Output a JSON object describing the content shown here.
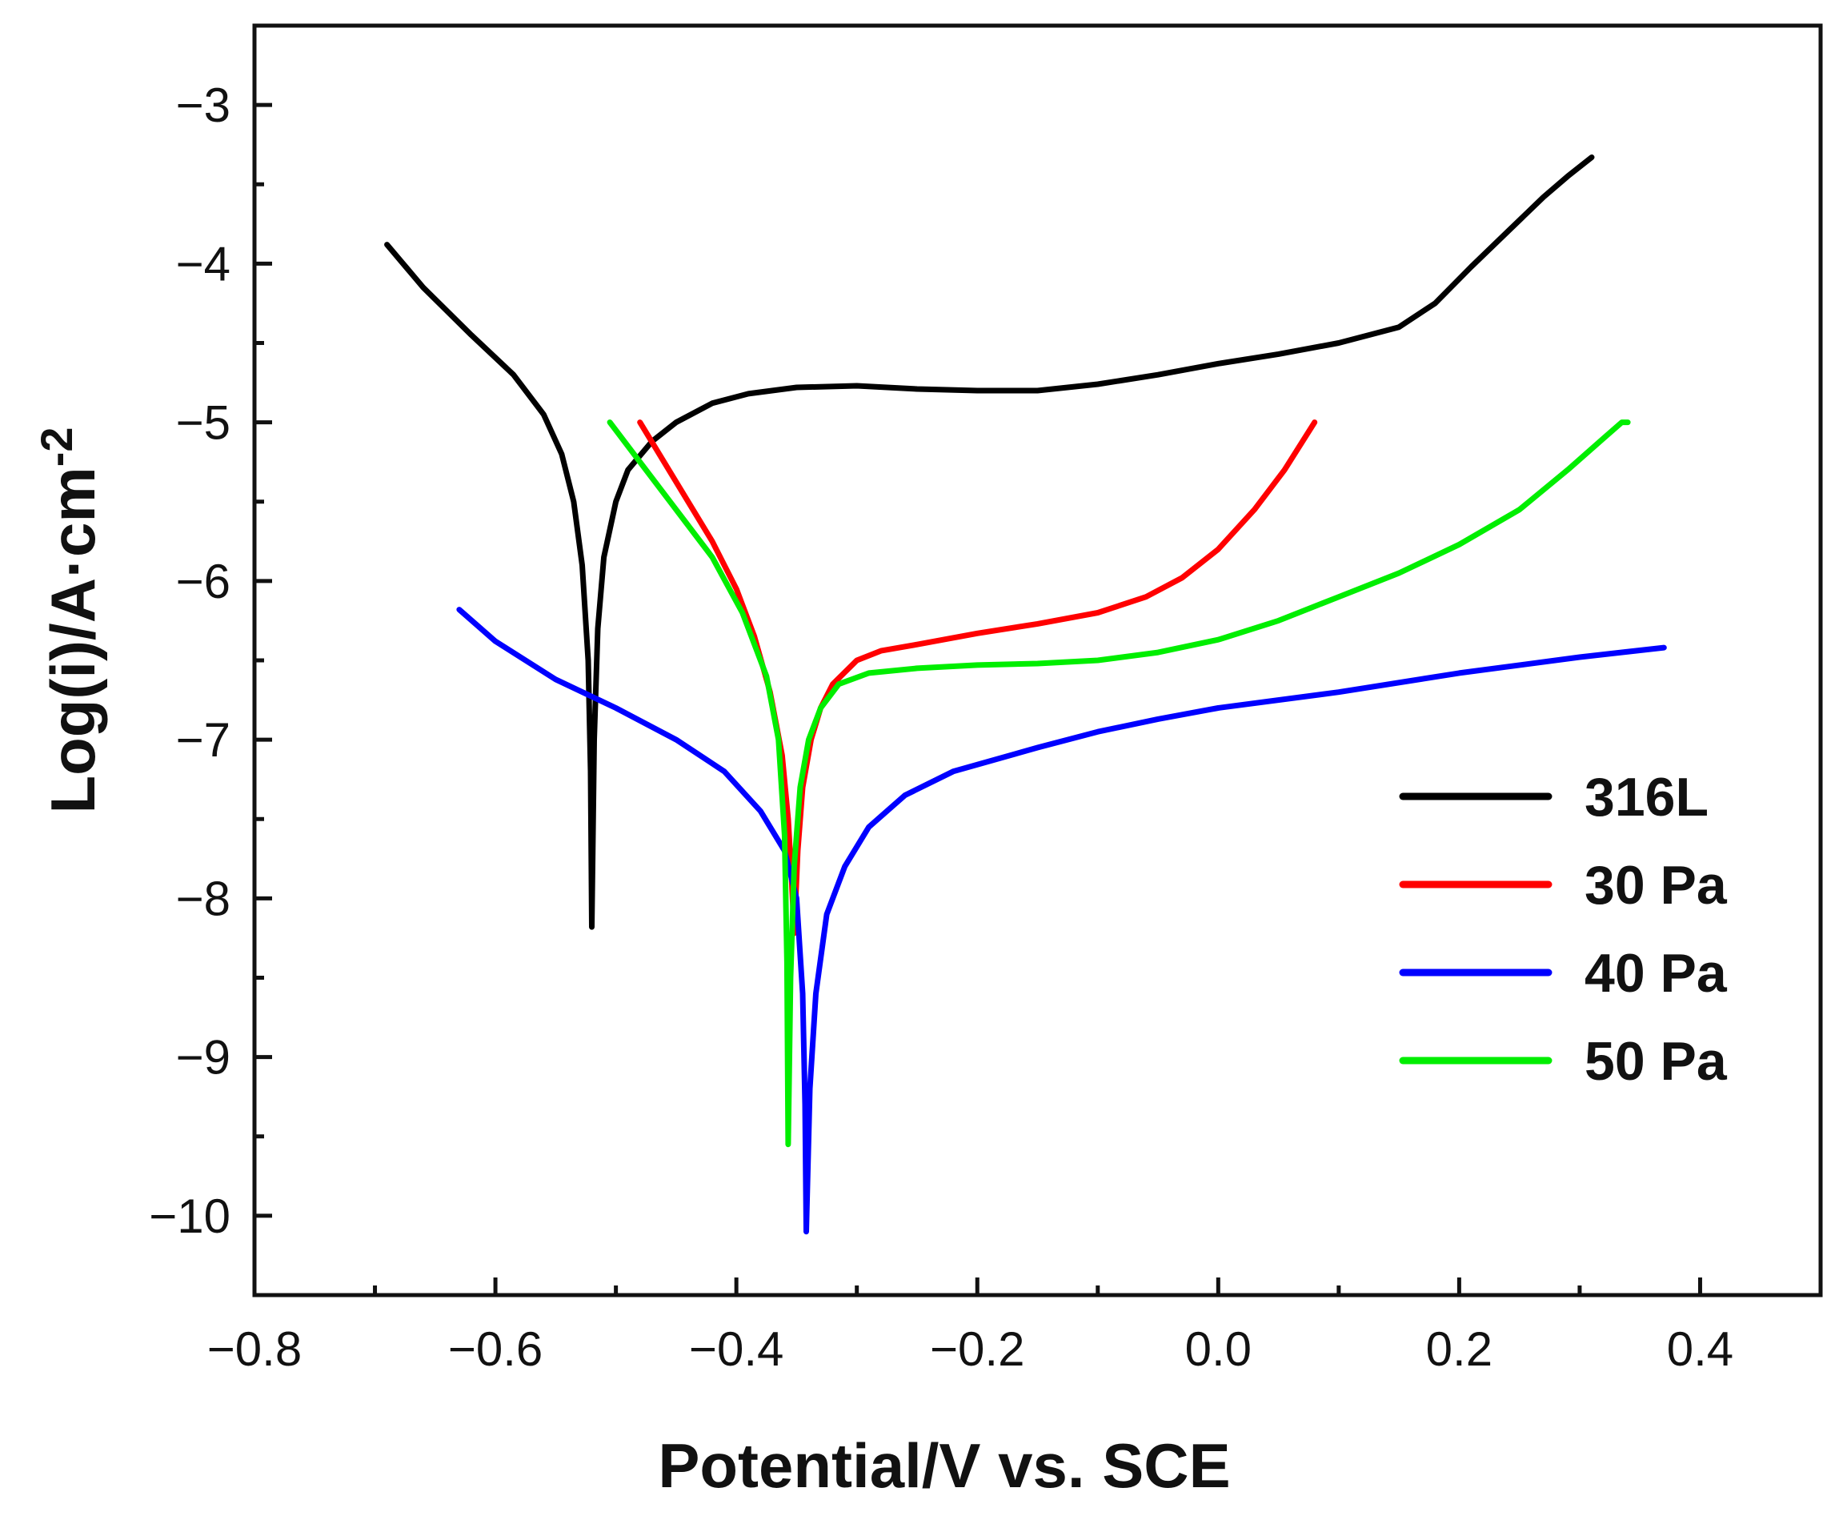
{
  "chart_data": {
    "type": "line",
    "title": "",
    "xlabel": "Potential/V vs. SCE",
    "ylabel_main": "Log(i)/A·cm",
    "ylabel_sup": "-2",
    "xlim": [
      -0.8,
      0.5
    ],
    "ylim": [
      -10.5,
      -2.5
    ],
    "x_ticks": [
      -0.8,
      -0.6,
      -0.4,
      -0.2,
      0.0,
      0.2,
      0.4
    ],
    "x_tick_labels": [
      "−0.8",
      "−0.6",
      "−0.4",
      "−0.2",
      "0.0",
      "0.2",
      "0.4"
    ],
    "y_ticks": [
      -3,
      -4,
      -5,
      -6,
      -7,
      -8,
      -9,
      -10
    ],
    "y_tick_labels": [
      "−3",
      "−4",
      "−5",
      "−6",
      "−7",
      "−8",
      "−9",
      "−10"
    ],
    "legend_position": "right",
    "series": [
      {
        "name": "316L",
        "color": "#000000",
        "points": [
          [
            -0.69,
            -3.88
          ],
          [
            -0.66,
            -4.15
          ],
          [
            -0.62,
            -4.45
          ],
          [
            -0.585,
            -4.7
          ],
          [
            -0.56,
            -4.95
          ],
          [
            -0.545,
            -5.2
          ],
          [
            -0.535,
            -5.5
          ],
          [
            -0.528,
            -5.9
          ],
          [
            -0.523,
            -6.5
          ],
          [
            -0.521,
            -7.2
          ],
          [
            -0.52,
            -8.18
          ],
          [
            -0.518,
            -7.0
          ],
          [
            -0.515,
            -6.3
          ],
          [
            -0.51,
            -5.85
          ],
          [
            -0.5,
            -5.5
          ],
          [
            -0.49,
            -5.3
          ],
          [
            -0.47,
            -5.12
          ],
          [
            -0.45,
            -5.0
          ],
          [
            -0.42,
            -4.88
          ],
          [
            -0.39,
            -4.82
          ],
          [
            -0.35,
            -4.78
          ],
          [
            -0.3,
            -4.77
          ],
          [
            -0.25,
            -4.79
          ],
          [
            -0.2,
            -4.8
          ],
          [
            -0.15,
            -4.8
          ],
          [
            -0.1,
            -4.76
          ],
          [
            -0.05,
            -4.7
          ],
          [
            0.0,
            -4.63
          ],
          [
            0.05,
            -4.57
          ],
          [
            0.1,
            -4.5
          ],
          [
            0.15,
            -4.4
          ],
          [
            0.18,
            -4.25
          ],
          [
            0.21,
            -4.02
          ],
          [
            0.24,
            -3.8
          ],
          [
            0.27,
            -3.58
          ],
          [
            0.29,
            -3.45
          ],
          [
            0.31,
            -3.33
          ]
        ]
      },
      {
        "name": "30 Pa",
        "color": "#ff0000",
        "points": [
          [
            -0.48,
            -5.0
          ],
          [
            -0.46,
            -5.25
          ],
          [
            -0.44,
            -5.5
          ],
          [
            -0.42,
            -5.75
          ],
          [
            -0.4,
            -6.05
          ],
          [
            -0.385,
            -6.35
          ],
          [
            -0.372,
            -6.7
          ],
          [
            -0.362,
            -7.1
          ],
          [
            -0.357,
            -7.5
          ],
          [
            -0.354,
            -7.9
          ],
          [
            -0.352,
            -8.22
          ],
          [
            -0.349,
            -7.7
          ],
          [
            -0.345,
            -7.3
          ],
          [
            -0.338,
            -7.0
          ],
          [
            -0.33,
            -6.8
          ],
          [
            -0.32,
            -6.65
          ],
          [
            -0.3,
            -6.5
          ],
          [
            -0.28,
            -6.44
          ],
          [
            -0.25,
            -6.4
          ],
          [
            -0.2,
            -6.33
          ],
          [
            -0.15,
            -6.27
          ],
          [
            -0.1,
            -6.2
          ],
          [
            -0.06,
            -6.1
          ],
          [
            -0.03,
            -5.98
          ],
          [
            0.0,
            -5.8
          ],
          [
            0.03,
            -5.55
          ],
          [
            0.055,
            -5.3
          ],
          [
            0.08,
            -5.0
          ]
        ]
      },
      {
        "name": "40 Pa",
        "color": "#0000ff",
        "points": [
          [
            -0.63,
            -6.18
          ],
          [
            -0.6,
            -6.38
          ],
          [
            -0.55,
            -6.62
          ],
          [
            -0.5,
            -6.8
          ],
          [
            -0.45,
            -7.0
          ],
          [
            -0.41,
            -7.2
          ],
          [
            -0.38,
            -7.45
          ],
          [
            -0.36,
            -7.7
          ],
          [
            -0.35,
            -8.0
          ],
          [
            -0.345,
            -8.6
          ],
          [
            -0.343,
            -9.3
          ],
          [
            -0.342,
            -10.1
          ],
          [
            -0.339,
            -9.2
          ],
          [
            -0.334,
            -8.6
          ],
          [
            -0.325,
            -8.1
          ],
          [
            -0.31,
            -7.8
          ],
          [
            -0.29,
            -7.55
          ],
          [
            -0.26,
            -7.35
          ],
          [
            -0.22,
            -7.2
          ],
          [
            -0.15,
            -7.05
          ],
          [
            -0.1,
            -6.95
          ],
          [
            -0.05,
            -6.87
          ],
          [
            0.0,
            -6.8
          ],
          [
            0.1,
            -6.7
          ],
          [
            0.2,
            -6.58
          ],
          [
            0.3,
            -6.48
          ],
          [
            0.37,
            -6.42
          ]
        ]
      },
      {
        "name": "50 Pa",
        "color": "#00ee00",
        "points": [
          [
            -0.505,
            -5.0
          ],
          [
            -0.48,
            -5.25
          ],
          [
            -0.45,
            -5.55
          ],
          [
            -0.42,
            -5.85
          ],
          [
            -0.395,
            -6.2
          ],
          [
            -0.375,
            -6.6
          ],
          [
            -0.365,
            -7.0
          ],
          [
            -0.36,
            -7.6
          ],
          [
            -0.358,
            -8.4
          ],
          [
            -0.357,
            -9.55
          ],
          [
            -0.355,
            -8.5
          ],
          [
            -0.352,
            -7.8
          ],
          [
            -0.347,
            -7.3
          ],
          [
            -0.34,
            -7.0
          ],
          [
            -0.33,
            -6.8
          ],
          [
            -0.315,
            -6.65
          ],
          [
            -0.29,
            -6.58
          ],
          [
            -0.25,
            -6.55
          ],
          [
            -0.2,
            -6.53
          ],
          [
            -0.15,
            -6.52
          ],
          [
            -0.1,
            -6.5
          ],
          [
            -0.05,
            -6.45
          ],
          [
            0.0,
            -6.37
          ],
          [
            0.05,
            -6.25
          ],
          [
            0.1,
            -6.1
          ],
          [
            0.15,
            -5.95
          ],
          [
            0.2,
            -5.77
          ],
          [
            0.25,
            -5.55
          ],
          [
            0.29,
            -5.3
          ],
          [
            0.32,
            -5.1
          ],
          [
            0.335,
            -5.0
          ],
          [
            0.34,
            -5.0
          ]
        ]
      }
    ]
  }
}
